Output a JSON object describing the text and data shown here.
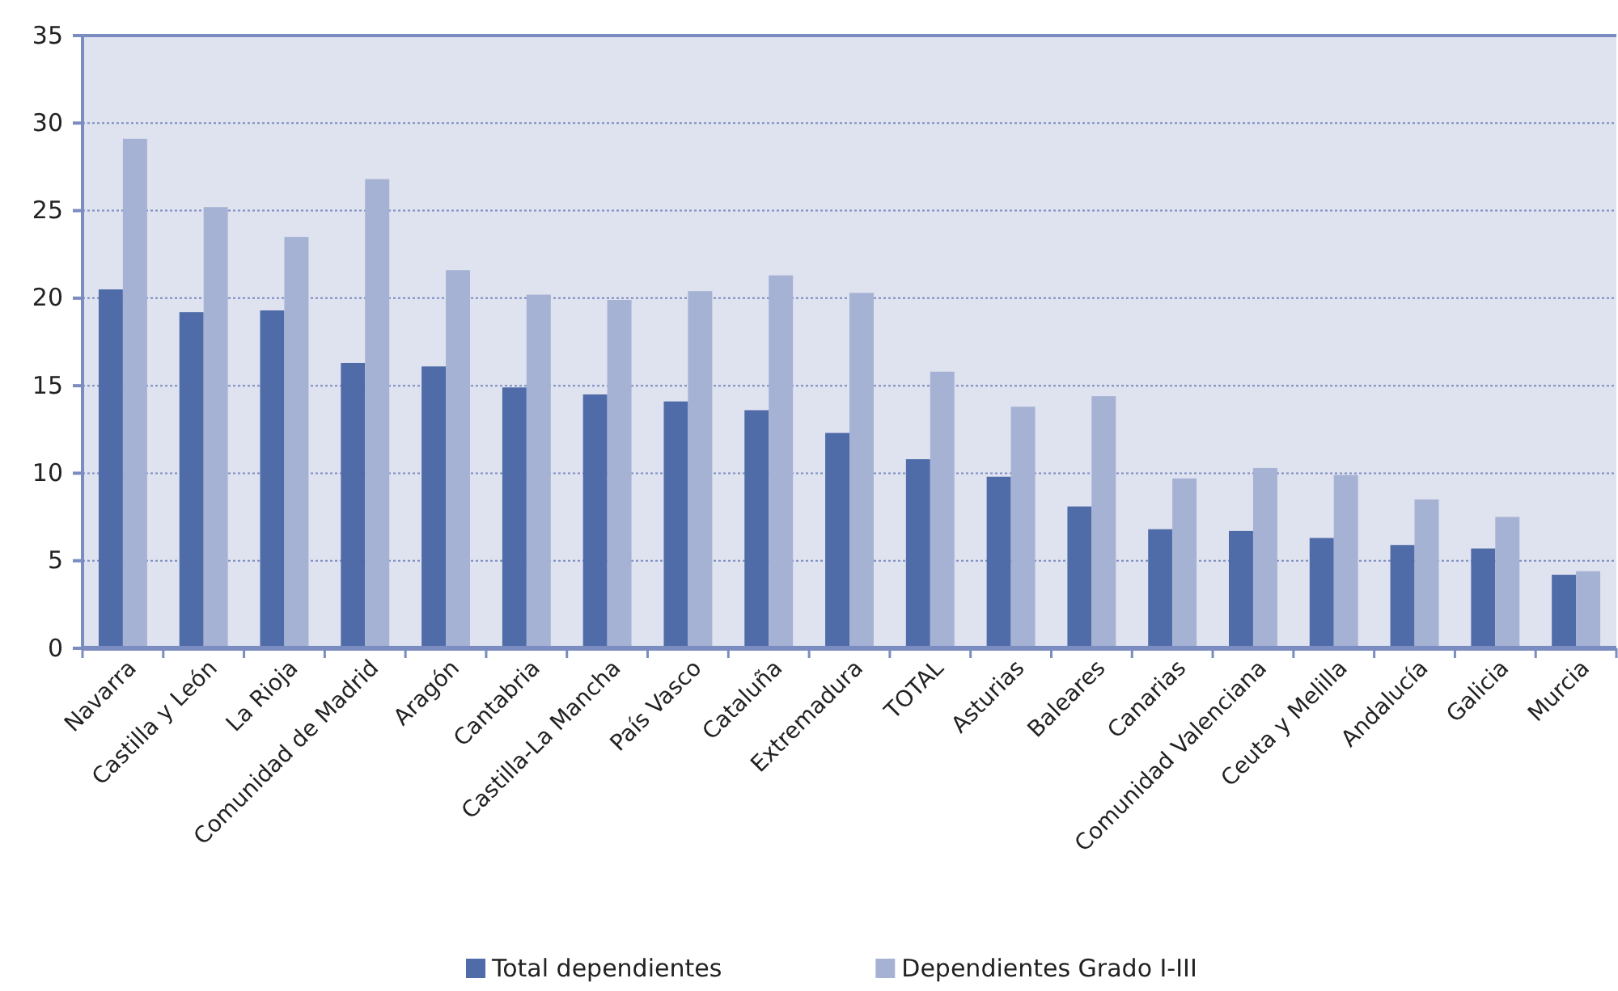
{
  "chart_data": {
    "type": "bar",
    "categories": [
      "Navarra",
      "Castilla y León",
      "La Rioja",
      "Comunidad de Madrid",
      "Aragón",
      "Cantabria",
      "Castilla-La Mancha",
      "País Vasco",
      "Cataluña",
      "Extremadura",
      "TOTAL",
      "Asturias",
      "Baleares",
      "Canarias",
      "Comunidad Valenciana",
      "Ceuta y Melilla",
      "Andalucía",
      "Galicia",
      "Murcia"
    ],
    "series": [
      {
        "name": "Total dependientes",
        "color": "#4f6ba8",
        "values": [
          20.5,
          19.2,
          19.3,
          16.3,
          16.1,
          14.9,
          14.5,
          14.1,
          13.6,
          12.3,
          10.8,
          9.8,
          8.1,
          6.8,
          6.7,
          6.3,
          5.9,
          5.7,
          4.2
        ]
      },
      {
        "name": "Dependientes Grado I-III",
        "color": "#a5b2d4",
        "values": [
          29.1,
          25.2,
          23.5,
          26.8,
          21.6,
          20.2,
          19.9,
          20.4,
          21.3,
          20.3,
          15.8,
          13.8,
          14.4,
          9.7,
          10.3,
          9.9,
          8.5,
          7.5,
          4.4
        ]
      }
    ],
    "ylim": [
      0,
      35
    ],
    "yticks": [
      0,
      5,
      10,
      15,
      20,
      25,
      30,
      35
    ],
    "grid": "y",
    "legend": "bottom"
  }
}
